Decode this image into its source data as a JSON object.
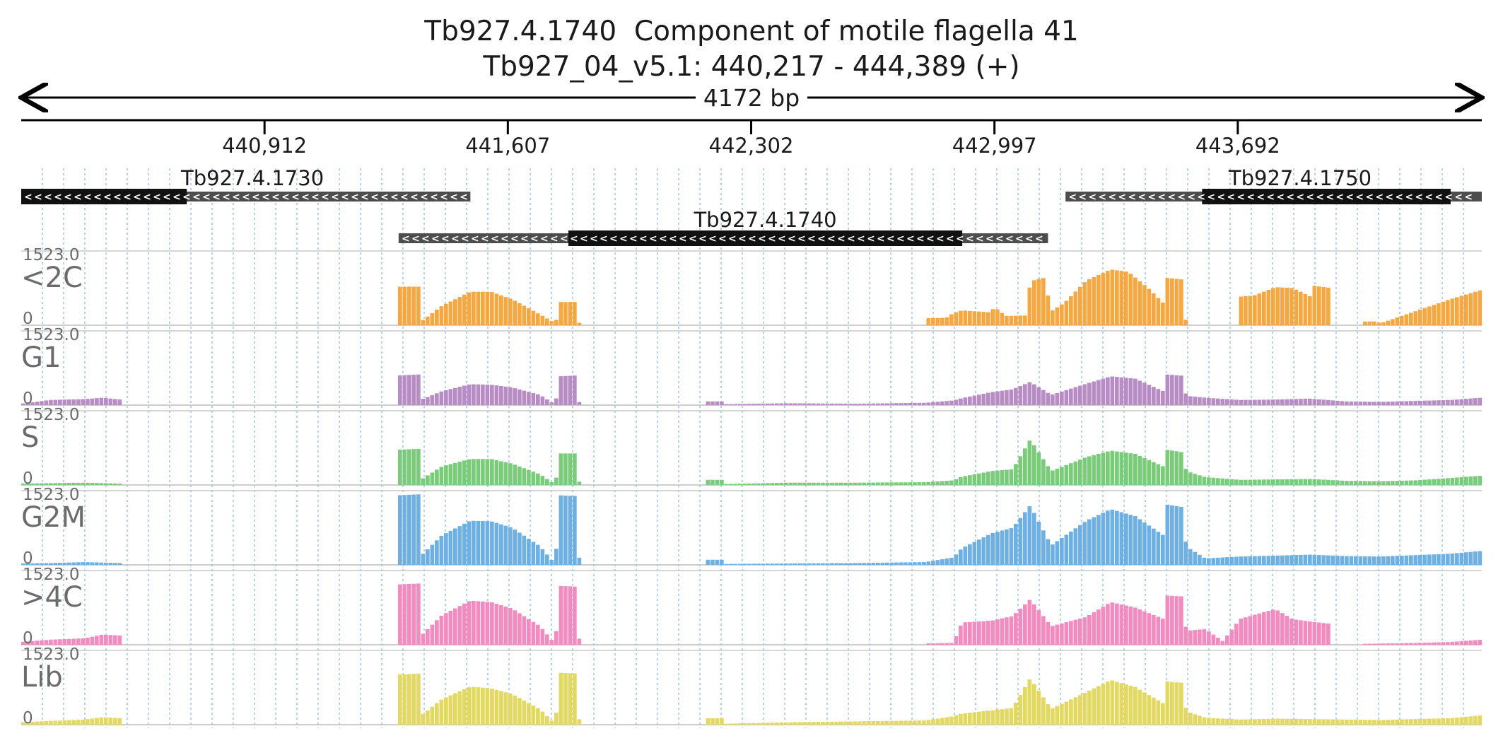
{
  "header": {
    "title_line1": "Tb927.4.1740  Component of motile flagella 41",
    "title_line2": "Tb927_04_v5.1: 440,217 - 444,389 (+)",
    "span_label": "4172 bp"
  },
  "chart_data": {
    "type": "area",
    "genomic_range": [
      440217,
      444389
    ],
    "x_ticks": [
      440912,
      441607,
      442302,
      442997,
      443692
    ],
    "x_tick_labels": [
      "440,912",
      "441,607",
      "442,302",
      "442,997",
      "443,692"
    ],
    "grid": true,
    "genes": [
      {
        "id": "Tb927.4.1730",
        "row": 0,
        "strand": "-",
        "utr": [
          440217,
          441500
        ],
        "cds": [
          440217,
          440690
        ]
      },
      {
        "id": "Tb927.4.1750",
        "row": 0,
        "strand": "-",
        "utr": [
          443200,
          444389
        ],
        "cds": [
          443590,
          444300
        ]
      },
      {
        "id": "Tb927.4.1740",
        "row": 1,
        "strand": "-",
        "utr": [
          441295,
          443150
        ],
        "cds": [
          441780,
          442905
        ]
      }
    ],
    "y_max": 1523.0,
    "y_max_label": "1523.0",
    "y_min_label": "0",
    "tracks": [
      {
        "name": "<2C",
        "color": "#f5a742",
        "profile": [
          [
            441295,
            0
          ],
          [
            441297,
            830
          ],
          [
            441355,
            830
          ],
          [
            441357,
            0
          ],
          [
            441360,
            80
          ],
          [
            441420,
            420
          ],
          [
            441500,
            720
          ],
          [
            441560,
            720
          ],
          [
            441620,
            560
          ],
          [
            441700,
            230
          ],
          [
            441740,
            60
          ],
          [
            441745,
            0
          ],
          [
            441750,
            500
          ],
          [
            441810,
            500
          ],
          [
            441812,
            0
          ],
          [
            442800,
            0
          ],
          [
            442802,
            150
          ],
          [
            442860,
            160
          ],
          [
            442880,
            260
          ],
          [
            442905,
            320
          ],
          [
            442980,
            280
          ],
          [
            443000,
            380
          ],
          [
            443030,
            200
          ],
          [
            443090,
            210
          ],
          [
            443100,
            950
          ],
          [
            443140,
            1020
          ],
          [
            443160,
            300
          ],
          [
            443200,
            500
          ],
          [
            443260,
            960
          ],
          [
            443330,
            1200
          ],
          [
            443380,
            1150
          ],
          [
            443440,
            780
          ],
          [
            443480,
            480
          ],
          [
            443490,
            1020
          ],
          [
            443540,
            980
          ],
          [
            443545,
            0
          ],
          [
            443690,
            0
          ],
          [
            443692,
            610
          ],
          [
            443740,
            640
          ],
          [
            443800,
            820
          ],
          [
            443850,
            800
          ],
          [
            443900,
            620
          ],
          [
            443910,
            850
          ],
          [
            443960,
            800
          ],
          [
            443962,
            0
          ],
          [
            444050,
            0
          ],
          [
            444052,
            80
          ],
          [
            444090,
            80
          ],
          [
            444100,
            40
          ],
          [
            444200,
            300
          ],
          [
            444300,
            560
          ],
          [
            444389,
            760
          ]
        ]
      },
      {
        "name": "G1",
        "color": "#b88cc4",
        "profile": [
          [
            440217,
            30
          ],
          [
            440250,
            60
          ],
          [
            440300,
            110
          ],
          [
            440400,
            130
          ],
          [
            440450,
            160
          ],
          [
            440500,
            120
          ],
          [
            440510,
            0
          ],
          [
            441295,
            0
          ],
          [
            441297,
            640
          ],
          [
            441355,
            660
          ],
          [
            441357,
            0
          ],
          [
            441360,
            120
          ],
          [
            441420,
            300
          ],
          [
            441500,
            450
          ],
          [
            441560,
            440
          ],
          [
            441620,
            380
          ],
          [
            441700,
            220
          ],
          [
            441745,
            0
          ],
          [
            441750,
            620
          ],
          [
            441810,
            640
          ],
          [
            441812,
            0
          ],
          [
            442170,
            0
          ],
          [
            442172,
            80
          ],
          [
            442220,
            80
          ],
          [
            442230,
            20
          ],
          [
            442400,
            40
          ],
          [
            442600,
            30
          ],
          [
            442800,
            50
          ],
          [
            442880,
            100
          ],
          [
            442905,
            150
          ],
          [
            442990,
            280
          ],
          [
            443050,
            340
          ],
          [
            443100,
            500
          ],
          [
            443160,
            220
          ],
          [
            443260,
            460
          ],
          [
            443330,
            620
          ],
          [
            443400,
            570
          ],
          [
            443480,
            300
          ],
          [
            443490,
            660
          ],
          [
            443540,
            630
          ],
          [
            443545,
            200
          ],
          [
            443600,
            160
          ],
          [
            443700,
            110
          ],
          [
            443800,
            120
          ],
          [
            443900,
            140
          ],
          [
            444000,
            80
          ],
          [
            444100,
            70
          ],
          [
            444200,
            90
          ],
          [
            444300,
            110
          ],
          [
            444389,
            160
          ]
        ]
      },
      {
        "name": "S",
        "color": "#7acb7a",
        "profile": [
          [
            440217,
            30
          ],
          [
            440300,
            40
          ],
          [
            440400,
            50
          ],
          [
            440500,
            30
          ],
          [
            440510,
            0
          ],
          [
            441295,
            0
          ],
          [
            441297,
            760
          ],
          [
            441355,
            780
          ],
          [
            441357,
            0
          ],
          [
            441360,
            120
          ],
          [
            441420,
            400
          ],
          [
            441500,
            560
          ],
          [
            441560,
            560
          ],
          [
            441620,
            460
          ],
          [
            441700,
            230
          ],
          [
            441745,
            0
          ],
          [
            441750,
            680
          ],
          [
            441810,
            680
          ],
          [
            441812,
            0
          ],
          [
            442170,
            0
          ],
          [
            442172,
            110
          ],
          [
            442220,
            110
          ],
          [
            442230,
            20
          ],
          [
            442400,
            50
          ],
          [
            442600,
            50
          ],
          [
            442800,
            60
          ],
          [
            442880,
            100
          ],
          [
            442905,
            180
          ],
          [
            442990,
            300
          ],
          [
            443050,
            340
          ],
          [
            443100,
            980
          ],
          [
            443160,
            300
          ],
          [
            443260,
            600
          ],
          [
            443330,
            740
          ],
          [
            443400,
            670
          ],
          [
            443480,
            400
          ],
          [
            443490,
            760
          ],
          [
            443540,
            700
          ],
          [
            443545,
            300
          ],
          [
            443600,
            170
          ],
          [
            443700,
            110
          ],
          [
            443800,
            120
          ],
          [
            443900,
            130
          ],
          [
            444000,
            90
          ],
          [
            444100,
            80
          ],
          [
            444200,
            100
          ],
          [
            444300,
            150
          ],
          [
            444389,
            200
          ]
        ]
      },
      {
        "name": "G2M",
        "color": "#6eb0e2",
        "profile": [
          [
            440217,
            30
          ],
          [
            440300,
            40
          ],
          [
            440400,
            60
          ],
          [
            440500,
            40
          ],
          [
            440510,
            0
          ],
          [
            441295,
            0
          ],
          [
            441297,
            1500
          ],
          [
            441355,
            1520
          ],
          [
            441357,
            0
          ],
          [
            441360,
            200
          ],
          [
            441420,
            640
          ],
          [
            441500,
            950
          ],
          [
            441560,
            940
          ],
          [
            441620,
            800
          ],
          [
            441700,
            400
          ],
          [
            441745,
            0
          ],
          [
            441750,
            1500
          ],
          [
            441810,
            1480
          ],
          [
            441812,
            0
          ],
          [
            442170,
            0
          ],
          [
            442172,
            110
          ],
          [
            442220,
            110
          ],
          [
            442230,
            20
          ],
          [
            442400,
            30
          ],
          [
            442600,
            40
          ],
          [
            442800,
            60
          ],
          [
            442880,
            160
          ],
          [
            442905,
            360
          ],
          [
            442990,
            680
          ],
          [
            443050,
            800
          ],
          [
            443100,
            1280
          ],
          [
            443160,
            420
          ],
          [
            443260,
            950
          ],
          [
            443330,
            1200
          ],
          [
            443400,
            1050
          ],
          [
            443480,
            640
          ],
          [
            443490,
            1300
          ],
          [
            443540,
            1240
          ],
          [
            443545,
            400
          ],
          [
            443600,
            140
          ],
          [
            443700,
            180
          ],
          [
            443800,
            200
          ],
          [
            443900,
            220
          ],
          [
            444000,
            190
          ],
          [
            444100,
            180
          ],
          [
            444200,
            210
          ],
          [
            444300,
            240
          ],
          [
            444389,
            300
          ]
        ]
      },
      {
        "name": ">4C",
        "color": "#f28cc0",
        "profile": [
          [
            440217,
            60
          ],
          [
            440300,
            110
          ],
          [
            440400,
            140
          ],
          [
            440450,
            220
          ],
          [
            440500,
            200
          ],
          [
            440510,
            0
          ],
          [
            441295,
            0
          ],
          [
            441297,
            1300
          ],
          [
            441355,
            1320
          ],
          [
            441357,
            0
          ],
          [
            441360,
            200
          ],
          [
            441420,
            640
          ],
          [
            441500,
            950
          ],
          [
            441560,
            920
          ],
          [
            441620,
            780
          ],
          [
            441700,
            400
          ],
          [
            441745,
            0
          ],
          [
            441750,
            1270
          ],
          [
            441810,
            1250
          ],
          [
            441812,
            0
          ],
          [
            442800,
            0
          ],
          [
            442802,
            30
          ],
          [
            442880,
            40
          ],
          [
            442905,
            480
          ],
          [
            442990,
            520
          ],
          [
            443050,
            620
          ],
          [
            443100,
            980
          ],
          [
            443160,
            400
          ],
          [
            443260,
            600
          ],
          [
            443330,
            920
          ],
          [
            443400,
            800
          ],
          [
            443480,
            560
          ],
          [
            443490,
            1060
          ],
          [
            443540,
            1040
          ],
          [
            443545,
            300
          ],
          [
            443600,
            340
          ],
          [
            443650,
            80
          ],
          [
            443700,
            560
          ],
          [
            443800,
            770
          ],
          [
            443850,
            550
          ],
          [
            443900,
            500
          ],
          [
            443960,
            450
          ],
          [
            443962,
            0
          ],
          [
            444050,
            0
          ],
          [
            444052,
            20
          ],
          [
            444200,
            40
          ],
          [
            444300,
            60
          ],
          [
            444389,
            110
          ]
        ]
      },
      {
        "name": "Lib",
        "color": "#e2d862",
        "profile": [
          [
            440217,
            50
          ],
          [
            440300,
            80
          ],
          [
            440400,
            110
          ],
          [
            440450,
            160
          ],
          [
            440500,
            140
          ],
          [
            440510,
            0
          ],
          [
            441295,
            0
          ],
          [
            441297,
            1080
          ],
          [
            441355,
            1100
          ],
          [
            441357,
            0
          ],
          [
            441360,
            200
          ],
          [
            441420,
            550
          ],
          [
            441500,
            820
          ],
          [
            441560,
            780
          ],
          [
            441620,
            660
          ],
          [
            441700,
            330
          ],
          [
            441745,
            0
          ],
          [
            441750,
            1120
          ],
          [
            441810,
            1100
          ],
          [
            441812,
            0
          ],
          [
            442170,
            0
          ],
          [
            442172,
            140
          ],
          [
            442220,
            140
          ],
          [
            442230,
            20
          ],
          [
            442400,
            50
          ],
          [
            442600,
            70
          ],
          [
            442800,
            90
          ],
          [
            442880,
            180
          ],
          [
            442905,
            240
          ],
          [
            442990,
            310
          ],
          [
            443050,
            360
          ],
          [
            443100,
            1000
          ],
          [
            443160,
            340
          ],
          [
            443260,
            700
          ],
          [
            443330,
            960
          ],
          [
            443400,
            810
          ],
          [
            443480,
            460
          ],
          [
            443490,
            930
          ],
          [
            443540,
            900
          ],
          [
            443545,
            290
          ],
          [
            443600,
            150
          ],
          [
            443700,
            110
          ],
          [
            443800,
            130
          ],
          [
            443900,
            120
          ],
          [
            444000,
            110
          ],
          [
            444100,
            100
          ],
          [
            444200,
            120
          ],
          [
            444300,
            140
          ],
          [
            444389,
            200
          ]
        ]
      }
    ]
  }
}
